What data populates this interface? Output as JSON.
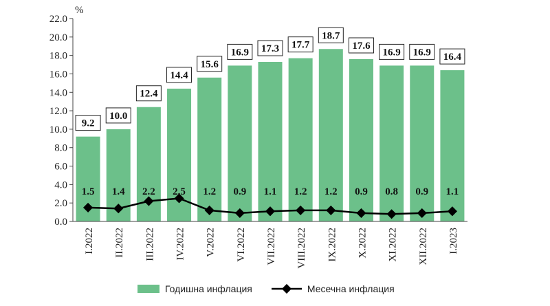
{
  "chart_data": {
    "type": "bar",
    "categories": [
      "I.2022",
      "II.2022",
      "III.2022",
      "IV.2022",
      "V.2022",
      "VI.2022",
      "VII.2022",
      "VIII.2022",
      "IX.2022",
      "X.2022",
      "XI.2022",
      "XII.2022",
      "I.2023"
    ],
    "series": [
      {
        "name": "Годишна инфлация",
        "type": "bar",
        "values": [
          9.2,
          10.0,
          12.4,
          14.4,
          15.6,
          16.9,
          17.3,
          17.7,
          18.7,
          17.6,
          16.9,
          16.9,
          16.4
        ],
        "color": "#6CC08A"
      },
      {
        "name": "Месечна инфлация",
        "type": "line",
        "values": [
          1.5,
          1.4,
          2.2,
          2.5,
          1.2,
          0.9,
          1.1,
          1.2,
          1.2,
          0.9,
          0.8,
          0.9,
          1.1
        ],
        "color": "#000000"
      }
    ],
    "ylabel": "%",
    "ylim": [
      0,
      22
    ],
    "yticks": [
      "0.0",
      "2.0",
      "4.0",
      "6.0",
      "8.0",
      "10.0",
      "12.0",
      "14.0",
      "16.0",
      "18.0",
      "20.0",
      "22.0"
    ],
    "grid": false,
    "legend_position": "bottom"
  }
}
